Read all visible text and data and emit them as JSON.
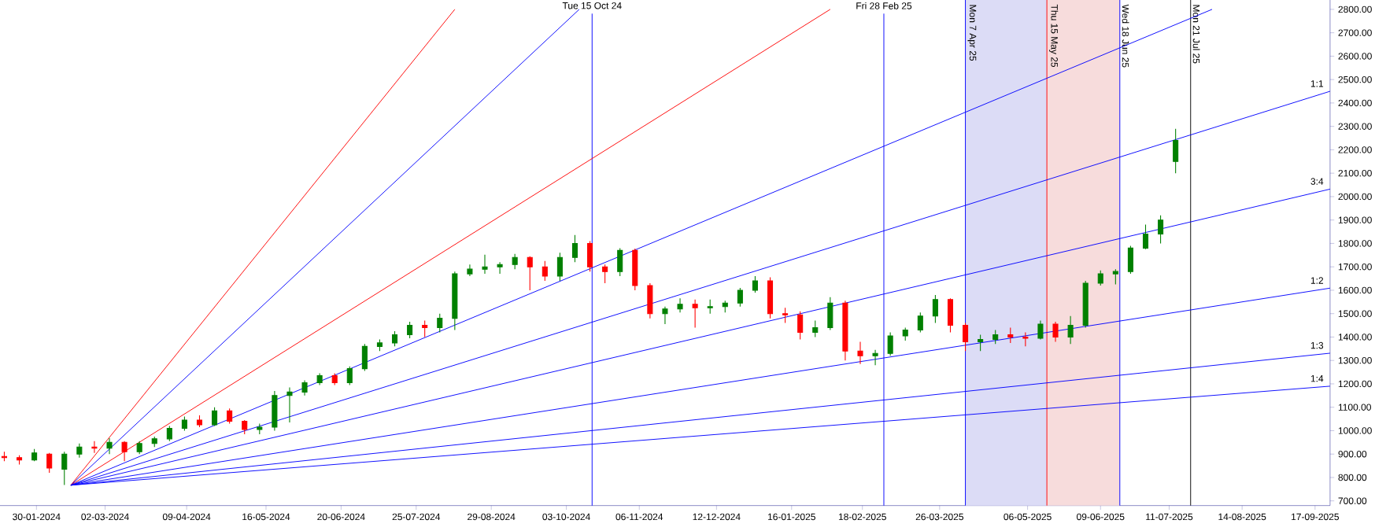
{
  "chart_data": {
    "type": "candlestick",
    "x": [
      "2024-01-15",
      "2024-01-22",
      "2024-01-29",
      "2024-02-05",
      "2024-02-12",
      "2024-02-19",
      "2024-02-26",
      "2024-03-04",
      "2024-03-11",
      "2024-03-18",
      "2024-03-25",
      "2024-04-01",
      "2024-04-08",
      "2024-04-15",
      "2024-04-22",
      "2024-04-29",
      "2024-05-06",
      "2024-05-13",
      "2024-05-20",
      "2024-05-27",
      "2024-06-03",
      "2024-06-10",
      "2024-06-17",
      "2024-06-24",
      "2024-07-01",
      "2024-07-08",
      "2024-07-15",
      "2024-07-22",
      "2024-07-29",
      "2024-08-05",
      "2024-08-12",
      "2024-08-19",
      "2024-08-26",
      "2024-09-02",
      "2024-09-09",
      "2024-09-16",
      "2024-09-23",
      "2024-09-30",
      "2024-10-07",
      "2024-10-14",
      "2024-10-21",
      "2024-10-28",
      "2024-11-04",
      "2024-11-11",
      "2024-11-18",
      "2024-11-25",
      "2024-12-02",
      "2024-12-09",
      "2024-12-16",
      "2024-12-23",
      "2024-12-30",
      "2025-01-06",
      "2025-01-13",
      "2025-01-20",
      "2025-01-27",
      "2025-02-03",
      "2025-02-10",
      "2025-02-17",
      "2025-02-24",
      "2025-03-03",
      "2025-03-10",
      "2025-03-17",
      "2025-03-24",
      "2025-03-31",
      "2025-04-07",
      "2025-04-14",
      "2025-04-21",
      "2025-04-28",
      "2025-05-05",
      "2025-05-12",
      "2025-05-19",
      "2025-05-26",
      "2025-06-02",
      "2025-06-09",
      "2025-06-16",
      "2025-06-23",
      "2025-06-30",
      "2025-07-07",
      "2025-07-14"
    ],
    "ohlc": [
      [
        890,
        910,
        870,
        885
      ],
      [
        885,
        895,
        855,
        875
      ],
      [
        875,
        922,
        870,
        905
      ],
      [
        900,
        905,
        820,
        840
      ],
      [
        835,
        910,
        768,
        900
      ],
      [
        900,
        945,
        885,
        930
      ],
      [
        930,
        955,
        905,
        925
      ],
      [
        925,
        968,
        900,
        950
      ],
      [
        950,
        955,
        870,
        910
      ],
      [
        910,
        955,
        900,
        945
      ],
      [
        945,
        975,
        930,
        965
      ],
      [
        965,
        1020,
        955,
        1010
      ],
      [
        1010,
        1060,
        1000,
        1045
      ],
      [
        1045,
        1065,
        1015,
        1025
      ],
      [
        1025,
        1100,
        1020,
        1085
      ],
      [
        1085,
        1095,
        1030,
        1040
      ],
      [
        1040,
        1045,
        985,
        1005
      ],
      [
        1005,
        1030,
        985,
        1015
      ],
      [
        1015,
        1170,
        1000,
        1150
      ],
      [
        1150,
        1185,
        1035,
        1165
      ],
      [
        1165,
        1215,
        1150,
        1205
      ],
      [
        1205,
        1245,
        1195,
        1235
      ],
      [
        1235,
        1245,
        1195,
        1205
      ],
      [
        1205,
        1275,
        1195,
        1265
      ],
      [
        1265,
        1370,
        1255,
        1360
      ],
      [
        1360,
        1390,
        1340,
        1375
      ],
      [
        1375,
        1425,
        1360,
        1410
      ],
      [
        1410,
        1465,
        1395,
        1450
      ],
      [
        1450,
        1470,
        1400,
        1440
      ],
      [
        1440,
        1500,
        1420,
        1480
      ],
      [
        1480,
        1680,
        1430,
        1670
      ],
      [
        1670,
        1710,
        1660,
        1690
      ],
      [
        1690,
        1752,
        1670,
        1700
      ],
      [
        1700,
        1720,
        1670,
        1710
      ],
      [
        1710,
        1755,
        1690,
        1740
      ],
      [
        1740,
        1745,
        1600,
        1700
      ],
      [
        1700,
        1725,
        1640,
        1660
      ],
      [
        1660,
        1760,
        1640,
        1740
      ],
      [
        1740,
        1836,
        1720,
        1800
      ],
      [
        1800,
        1810,
        1680,
        1700
      ],
      [
        1700,
        1710,
        1630,
        1680
      ],
      [
        1680,
        1780,
        1660,
        1770
      ],
      [
        1770,
        1778,
        1600,
        1620
      ],
      [
        1620,
        1630,
        1480,
        1500
      ],
      [
        1500,
        1530,
        1455,
        1520
      ],
      [
        1520,
        1565,
        1505,
        1540
      ],
      [
        1540,
        1560,
        1440,
        1525
      ],
      [
        1525,
        1560,
        1500,
        1530
      ],
      [
        1530,
        1555,
        1505,
        1545
      ],
      [
        1545,
        1610,
        1530,
        1600
      ],
      [
        1600,
        1660,
        1590,
        1640
      ],
      [
        1640,
        1655,
        1480,
        1500
      ],
      [
        1500,
        1525,
        1460,
        1495
      ],
      [
        1495,
        1510,
        1390,
        1420
      ],
      [
        1420,
        1470,
        1400,
        1440
      ],
      [
        1440,
        1570,
        1430,
        1545
      ],
      [
        1545,
        1555,
        1300,
        1340
      ],
      [
        1340,
        1380,
        1285,
        1320
      ],
      [
        1320,
        1345,
        1280,
        1330
      ],
      [
        1330,
        1420,
        1320,
        1405
      ],
      [
        1405,
        1440,
        1385,
        1430
      ],
      [
        1430,
        1505,
        1420,
        1490
      ],
      [
        1490,
        1580,
        1460,
        1560
      ],
      [
        1560,
        1565,
        1420,
        1450
      ],
      [
        1450,
        1460,
        1340,
        1380
      ],
      [
        1380,
        1410,
        1340,
        1390
      ],
      [
        1390,
        1430,
        1370,
        1410
      ],
      [
        1410,
        1440,
        1375,
        1400
      ],
      [
        1400,
        1420,
        1360,
        1395
      ],
      [
        1395,
        1470,
        1390,
        1455
      ],
      [
        1455,
        1465,
        1380,
        1400
      ],
      [
        1400,
        1490,
        1370,
        1450
      ],
      [
        1450,
        1640,
        1440,
        1630
      ],
      [
        1630,
        1685,
        1620,
        1670
      ],
      [
        1670,
        1690,
        1625,
        1680
      ],
      [
        1680,
        1790,
        1670,
        1780
      ],
      [
        1780,
        1880,
        1775,
        1840
      ],
      [
        1840,
        1920,
        1800,
        1900
      ],
      [
        2150,
        2290,
        2100,
        2240
      ]
    ],
    "colors": [
      "#ff0000",
      "#ff0000",
      "#008000",
      "#ff0000",
      "#008000",
      "#008000",
      "#ff0000",
      "#008000",
      "#ff0000",
      "#008000",
      "#008000",
      "#008000",
      "#008000",
      "#ff0000",
      "#008000",
      "#ff0000",
      "#ff0000",
      "#008000",
      "#008000",
      "#008000",
      "#008000",
      "#008000",
      "#ff0000",
      "#008000",
      "#008000",
      "#008000",
      "#008000",
      "#008000",
      "#ff0000",
      "#008000",
      "#008000",
      "#008000",
      "#008000",
      "#008000",
      "#008000",
      "#ff0000",
      "#ff0000",
      "#008000",
      "#008000",
      "#ff0000",
      "#ff0000",
      "#008000",
      "#ff0000",
      "#ff0000",
      "#008000",
      "#008000",
      "#ff0000",
      "#008000",
      "#008000",
      "#008000",
      "#008000",
      "#ff0000",
      "#ff0000",
      "#ff0000",
      "#008000",
      "#008000",
      "#ff0000",
      "#ff0000",
      "#008000",
      "#008000",
      "#008000",
      "#008000",
      "#008000",
      "#ff0000",
      "#ff0000",
      "#008000",
      "#008000",
      "#ff0000",
      "#ff0000",
      "#008000",
      "#ff0000",
      "#008000",
      "#008000",
      "#008000",
      "#008000",
      "#008000",
      "#008000",
      "#008000",
      "#008000"
    ],
    "series": [
      {
        "type": "line",
        "color": "#ff0000",
        "x": [
          "2024-02-15",
          "2024-08-12"
        ],
        "values": [
          767,
          2800
        ]
      },
      {
        "type": "line",
        "color": "#0000ff",
        "x": [
          "2024-02-15",
          "2024-10-09"
        ],
        "values": [
          767,
          2800
        ]
      },
      {
        "type": "line",
        "color": "#ff0000",
        "x": [
          "2024-02-15",
          "2025-02-03"
        ],
        "values": [
          767,
          2800
        ]
      },
      {
        "type": "line",
        "color": "#0000ff",
        "x": [
          "2024-02-15",
          "2025-07-31"
        ],
        "values": [
          767,
          2800
        ]
      },
      {
        "type": "line",
        "name": "1:1",
        "color": "#0000ff",
        "x": [
          "2024-02-15",
          "2025-09-24"
        ],
        "values": [
          767,
          2450
        ]
      },
      {
        "type": "line",
        "name": "3:4",
        "color": "#0000ff",
        "x": [
          "2024-02-15",
          "2025-09-24"
        ],
        "values": [
          767,
          2032
        ]
      },
      {
        "type": "line",
        "name": "1:2",
        "color": "#0000ff",
        "x": [
          "2024-02-15",
          "2025-09-24"
        ],
        "values": [
          767,
          1609
        ]
      },
      {
        "type": "line",
        "name": "1:3",
        "color": "#0000ff",
        "x": [
          "2024-02-15",
          "2025-09-24"
        ],
        "values": [
          767,
          1331
        ]
      },
      {
        "type": "line",
        "name": "1:4",
        "color": "#0000ff",
        "x": [
          "2024-02-15",
          "2025-09-24"
        ],
        "values": [
          767,
          1190
        ]
      }
    ],
    "ref_lines": [
      {
        "axis": "x",
        "value": "2024-10-15",
        "label": "Tue 15 Oct 24",
        "color": "#0000ff"
      },
      {
        "axis": "x",
        "value": "2025-02-28",
        "label": "Fri 28 Feb 25",
        "color": "#0000ff"
      },
      {
        "axis": "x",
        "value": "2025-04-07",
        "label": "Mon 7 Apr 25",
        "color": "#0000ff"
      },
      {
        "axis": "x",
        "value": "2025-05-15",
        "label": "Thu 15 May 25",
        "color": "#ff0000"
      },
      {
        "axis": "x",
        "value": "2025-06-18",
        "label": "Wed 18 Jun 25",
        "color": "#0000ff"
      },
      {
        "axis": "x",
        "value": "2025-07-21",
        "label": "Mon 21 Jul 25",
        "color": "#000000"
      }
    ],
    "bands": [
      {
        "axis": "x",
        "from": "2025-04-07",
        "to": "2025-05-15",
        "color": "#dcdcf6"
      },
      {
        "axis": "x",
        "from": "2025-05-15",
        "to": "2025-06-18",
        "color": "#f7dcdc"
      }
    ],
    "xlim": [
      "2024-01-13",
      "2025-09-24"
    ],
    "xticks": [
      {
        "value": "2024-01-30",
        "label": "30-01-2024"
      },
      {
        "value": "2024-03-02",
        "label": "02-03-2024"
      },
      {
        "value": "2024-04-09",
        "label": "09-04-2024"
      },
      {
        "value": "2024-05-16",
        "label": "16-05-2024"
      },
      {
        "value": "2024-06-20",
        "label": "20-06-2024"
      },
      {
        "value": "2024-07-25",
        "label": "25-07-2024"
      },
      {
        "value": "2024-08-29",
        "label": "29-08-2024"
      },
      {
        "value": "2024-10-03",
        "label": "03-10-2024"
      },
      {
        "value": "2024-11-06",
        "label": "06-11-2024"
      },
      {
        "value": "2024-12-12",
        "label": "12-12-2024"
      },
      {
        "value": "2025-01-16",
        "label": "16-01-2025"
      },
      {
        "value": "2025-02-18",
        "label": "18-02-2025"
      },
      {
        "value": "2025-03-26",
        "label": "26-03-2025"
      },
      {
        "value": "2025-05-06",
        "label": "06-05-2025"
      },
      {
        "value": "2025-06-09",
        "label": "09-06-2025"
      },
      {
        "value": "2025-07-11",
        "label": "11-07-2025"
      },
      {
        "value": "2025-08-14",
        "label": "14-08-2025"
      },
      {
        "value": "2025-09-17",
        "label": "17-09-2025"
      }
    ],
    "ylim": [
      680,
      2840
    ],
    "yticks": [
      {
        "value": 700,
        "label": "700.00"
      },
      {
        "value": 800,
        "label": "800.00"
      },
      {
        "value": 900,
        "label": "900.00"
      },
      {
        "value": 1000,
        "label": "1000.00"
      },
      {
        "value": 1100,
        "label": "1100.00"
      },
      {
        "value": 1200,
        "label": "1200.00"
      },
      {
        "value": 1300,
        "label": "1300.00"
      },
      {
        "value": 1400,
        "label": "1400.00"
      },
      {
        "value": 1500,
        "label": "1500.00"
      },
      {
        "value": 1600,
        "label": "1600.00"
      },
      {
        "value": 1700,
        "label": "1700.00"
      },
      {
        "value": 1800,
        "label": "1800.00"
      },
      {
        "value": 1900,
        "label": "1900.00"
      },
      {
        "value": 2000,
        "label": "2000.00"
      },
      {
        "value": 2100,
        "label": "2100.00"
      },
      {
        "value": 2200,
        "label": "2200.00"
      },
      {
        "value": 2300,
        "label": "2300.00"
      },
      {
        "value": 2400,
        "label": "2400.00"
      },
      {
        "value": 2500,
        "label": "2500.00"
      },
      {
        "value": 2600,
        "label": "2600.00"
      },
      {
        "value": 2700,
        "label": "2700.00"
      },
      {
        "value": 2800,
        "label": "2800.00"
      }
    ]
  }
}
